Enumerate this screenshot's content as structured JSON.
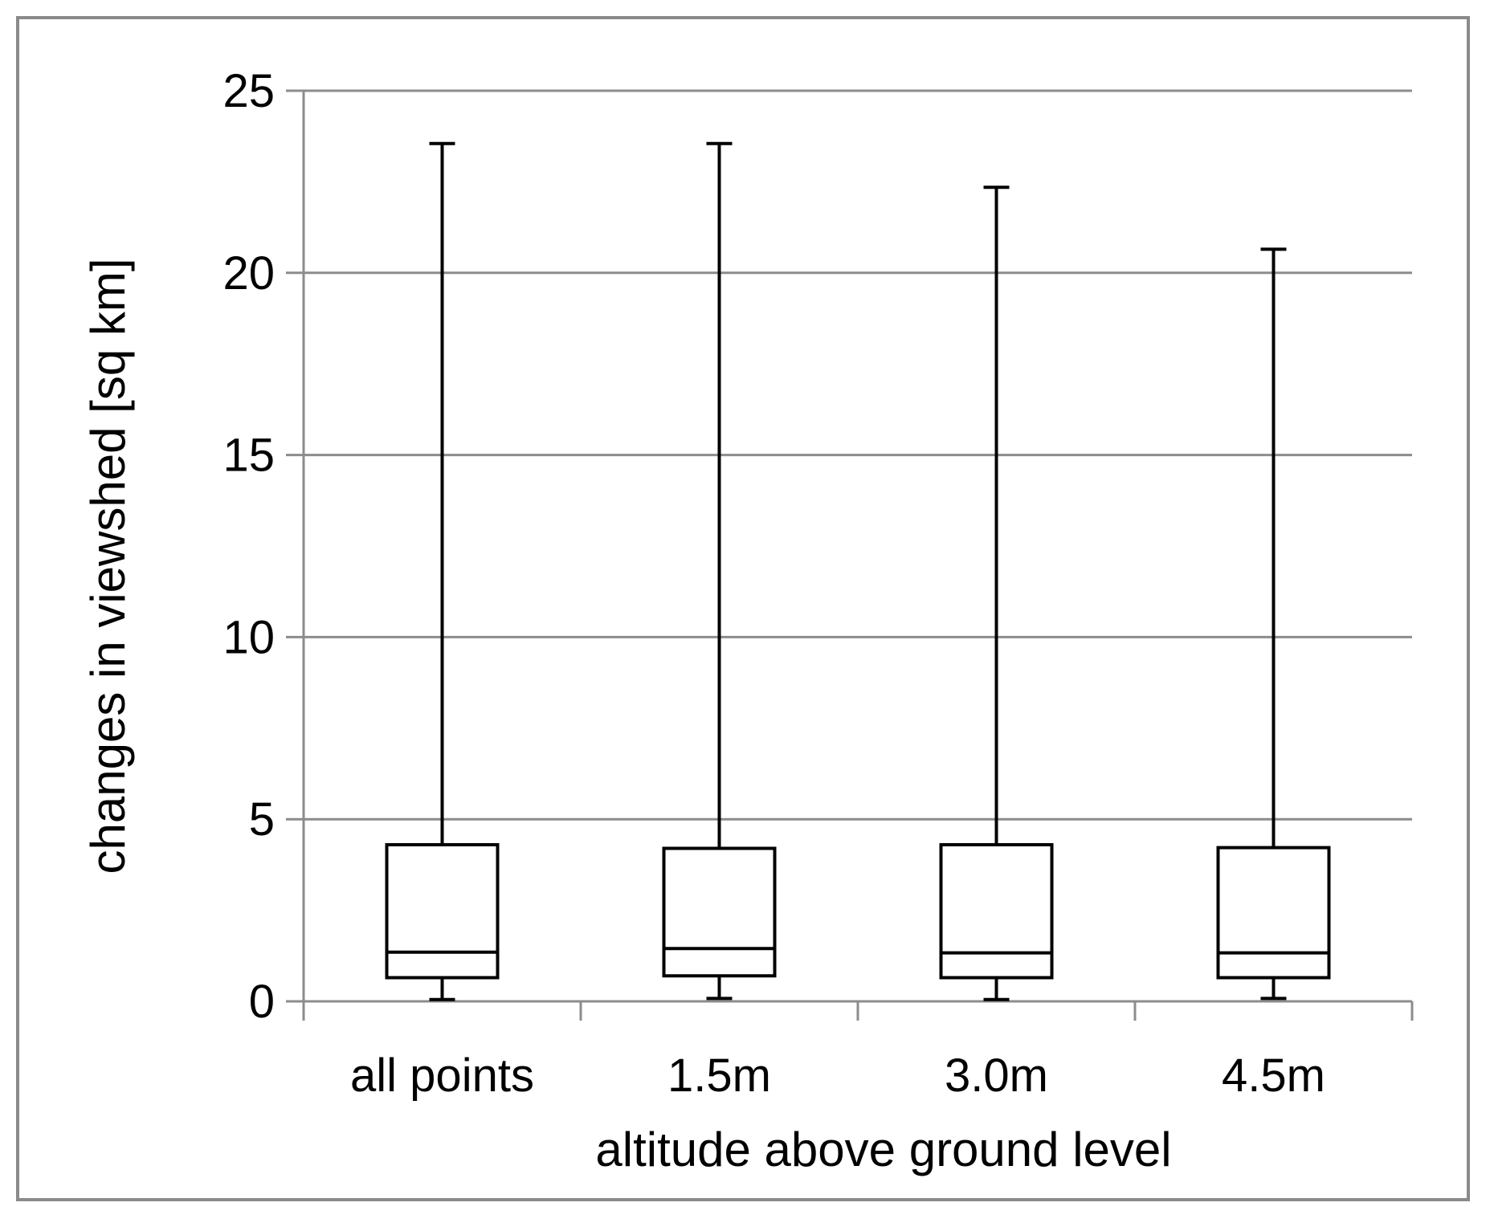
{
  "chart_data": {
    "type": "box",
    "title": "",
    "xlabel": "altitude above ground level",
    "ylabel": "changes in viewshed [sq km]",
    "ylim": [
      0,
      25
    ],
    "yticks": [
      "0",
      "5",
      "10",
      "15",
      "20",
      "25"
    ],
    "grid": true,
    "legend": "none",
    "categories": [
      "all points",
      "1.5m",
      "3.0m",
      "4.5m"
    ],
    "boxes": [
      {
        "category": "all points",
        "min": 0.05,
        "q1": 0.65,
        "median": 1.35,
        "q3": 4.3,
        "max": 23.55
      },
      {
        "category": "1.5m",
        "min": 0.08,
        "q1": 0.7,
        "median": 1.45,
        "q3": 4.2,
        "max": 23.55
      },
      {
        "category": "3.0m",
        "min": 0.05,
        "q1": 0.65,
        "median": 1.33,
        "q3": 4.3,
        "max": 22.35
      },
      {
        "category": "4.5m",
        "min": 0.08,
        "q1": 0.65,
        "median": 1.33,
        "q3": 4.22,
        "max": 20.65
      }
    ],
    "colors": {
      "box_stroke": "#000000",
      "grid": "#8c8c8c",
      "axis": "#8c8c8c",
      "frame": "#8a8a8a"
    }
  }
}
